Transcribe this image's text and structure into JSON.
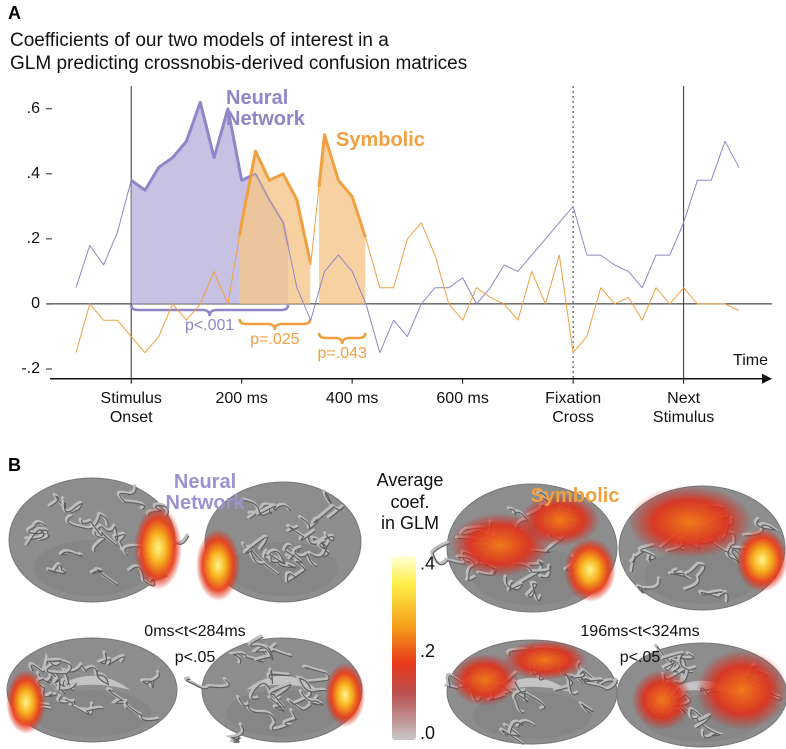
{
  "chart_data": {
    "type": "line",
    "panel_label": "A",
    "title": "Coefficients of our two models of interest in a\nGLM predicting crossnobis-derived confusion matrices",
    "x_label": "Time",
    "xlim": [
      -147,
      1160
    ],
    "ylim": [
      -0.23,
      0.67
    ],
    "xticks": [
      {
        "value": 0,
        "label": "Stimulus Onset"
      },
      {
        "value": 200,
        "label": "200 ms"
      },
      {
        "value": 400,
        "label": "400 ms"
      },
      {
        "value": 600,
        "label": "600 ms"
      },
      {
        "value": 800,
        "label": "Fixation Cross"
      },
      {
        "value": 1000,
        "label": "Next Stimulus"
      }
    ],
    "yticks": [
      {
        "value": 0.6,
        "label": ".6"
      },
      {
        "value": 0.4,
        "label": ".4"
      },
      {
        "value": 0.2,
        "label": ".2"
      },
      0,
      {
        "value": -0.2,
        "label": "-.2"
      }
    ],
    "event_lines": [
      {
        "value": 0,
        "style": "solid"
      },
      {
        "value": 800,
        "style": "dotted"
      },
      {
        "value": 1000,
        "style": "solid"
      }
    ],
    "zero_line": true,
    "x": [
      -100,
      -75,
      -50,
      -25,
      0,
      25,
      50,
      75,
      100,
      125,
      150,
      175,
      200,
      225,
      250,
      275,
      300,
      325,
      350,
      375,
      400,
      425,
      450,
      475,
      500,
      525,
      550,
      575,
      600,
      625,
      650,
      675,
      700,
      725,
      750,
      775,
      800,
      825,
      850,
      875,
      900,
      925,
      950,
      975,
      1000,
      1025,
      1050,
      1075,
      1100
    ],
    "series": [
      {
        "name": "Neural Network",
        "color": "#8f86c8",
        "fill": "#b9b2dc",
        "values": [
          0.05,
          0.18,
          0.12,
          0.22,
          0.38,
          0.35,
          0.42,
          0.45,
          0.5,
          0.62,
          0.45,
          0.6,
          0.38,
          0.4,
          0.32,
          0.25,
          0.05,
          -0.05,
          0.1,
          0.15,
          0.1,
          0.0,
          -0.15,
          -0.05,
          -0.1,
          0.0,
          0.05,
          0.05,
          0.08,
          0.0,
          0.05,
          0.12,
          0.1,
          0.15,
          0.2,
          0.25,
          0.3,
          0.15,
          0.15,
          0.12,
          0.1,
          0.05,
          0.15,
          0.15,
          0.25,
          0.38,
          0.38,
          0.5,
          0.42
        ],
        "significant_windows": [
          {
            "start": 0,
            "end": 284,
            "label": "p<.001"
          }
        ]
      },
      {
        "name": "Symbolic",
        "color": "#f0a040",
        "fill": "#f5c58a",
        "values": [
          -0.15,
          0.0,
          -0.05,
          -0.05,
          -0.1,
          -0.15,
          -0.1,
          0.0,
          -0.05,
          0.0,
          0.1,
          0.0,
          0.25,
          0.47,
          0.38,
          0.4,
          0.32,
          0.12,
          0.52,
          0.38,
          0.33,
          0.2,
          0.05,
          0.05,
          0.2,
          0.25,
          0.15,
          0.0,
          -0.05,
          0.05,
          0.02,
          0.0,
          -0.05,
          0.1,
          0.0,
          0.15,
          -0.15,
          -0.1,
          0.05,
          0.0,
          0.02,
          -0.05,
          0.05,
          0.0,
          0.05,
          0.0,
          0.0,
          0.0,
          -0.02
        ],
        "significant_windows": [
          {
            "start": 196,
            "end": 324,
            "label": "p=.025"
          },
          {
            "start": 340,
            "end": 424,
            "label": "p=.043"
          }
        ]
      }
    ]
  },
  "panel_b": {
    "panel_label": "B",
    "colorbar": {
      "title": "Average\ncoef.\nin GLM",
      "clim": [
        0,
        0.42
      ],
      "ticks": [
        {
          "value": 0.4,
          "label": ".4"
        },
        {
          "value": 0.2,
          "label": ".2"
        },
        {
          "value": 0,
          "label": ".0"
        }
      ]
    },
    "conditions": [
      {
        "name": "Neural Network",
        "color": "#9b93cf",
        "window": "0ms<t<284ms",
        "significance": "p<.05"
      },
      {
        "name": "Symbolic",
        "color": "#f0a040",
        "window": "196ms<t<324ms",
        "significance": "p<.05"
      }
    ]
  }
}
